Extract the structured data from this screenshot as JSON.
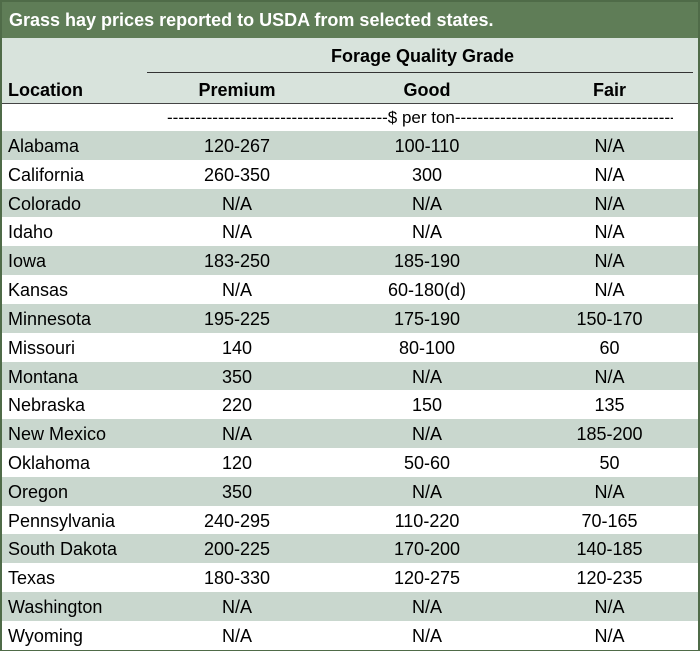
{
  "title": "Grass hay prices reported to USDA from selected states.",
  "header": {
    "group_label": "Forage Quality Grade",
    "location_label": "Location",
    "columns": [
      "Premium",
      "Good",
      "Fair"
    ]
  },
  "units_label": "---------------------------------------$ per ton----------------------------------------",
  "rows": [
    {
      "location": "Alabama",
      "premium": "120-267",
      "good": "100-110",
      "fair": "N/A"
    },
    {
      "location": "California",
      "premium": "260-350",
      "good": "300",
      "fair": "N/A"
    },
    {
      "location": "Colorado",
      "premium": "N/A",
      "good": "N/A",
      "fair": "N/A"
    },
    {
      "location": "Idaho",
      "premium": "N/A",
      "good": "N/A",
      "fair": "N/A"
    },
    {
      "location": "Iowa",
      "premium": "183-250",
      "good": "185-190",
      "fair": "N/A"
    },
    {
      "location": "Kansas",
      "premium": "N/A",
      "good": "60-180(d)",
      "fair": "N/A"
    },
    {
      "location": "Minnesota",
      "premium": "195-225",
      "good": "175-190",
      "fair": "150-170"
    },
    {
      "location": "Missouri",
      "premium": "140",
      "good": "80-100",
      "fair": "60"
    },
    {
      "location": "Montana",
      "premium": "350",
      "good": "N/A",
      "fair": "N/A"
    },
    {
      "location": "Nebraska",
      "premium": "220",
      "good": "150",
      "fair": "135"
    },
    {
      "location": "New Mexico",
      "premium": "N/A",
      "good": "N/A",
      "fair": "185-200"
    },
    {
      "location": "Oklahoma",
      "premium": "120",
      "good": "50-60",
      "fair": "50"
    },
    {
      "location": "Oregon",
      "premium": "350",
      "good": "N/A",
      "fair": "N/A"
    },
    {
      "location": "Pennsylvania",
      "premium": "240-295",
      "good": "110-220",
      "fair": "70-165"
    },
    {
      "location": "South Dakota",
      "premium": "200-225",
      "good": "170-200",
      "fair": "140-185"
    },
    {
      "location": "Texas",
      "premium": "180-330",
      "good": "120-275",
      "fair": "120-235"
    },
    {
      "location": "Washington",
      "premium": "N/A",
      "good": "N/A",
      "fair": "N/A"
    },
    {
      "location": "Wyoming",
      "premium": "N/A",
      "good": "N/A",
      "fair": "N/A"
    }
  ]
}
